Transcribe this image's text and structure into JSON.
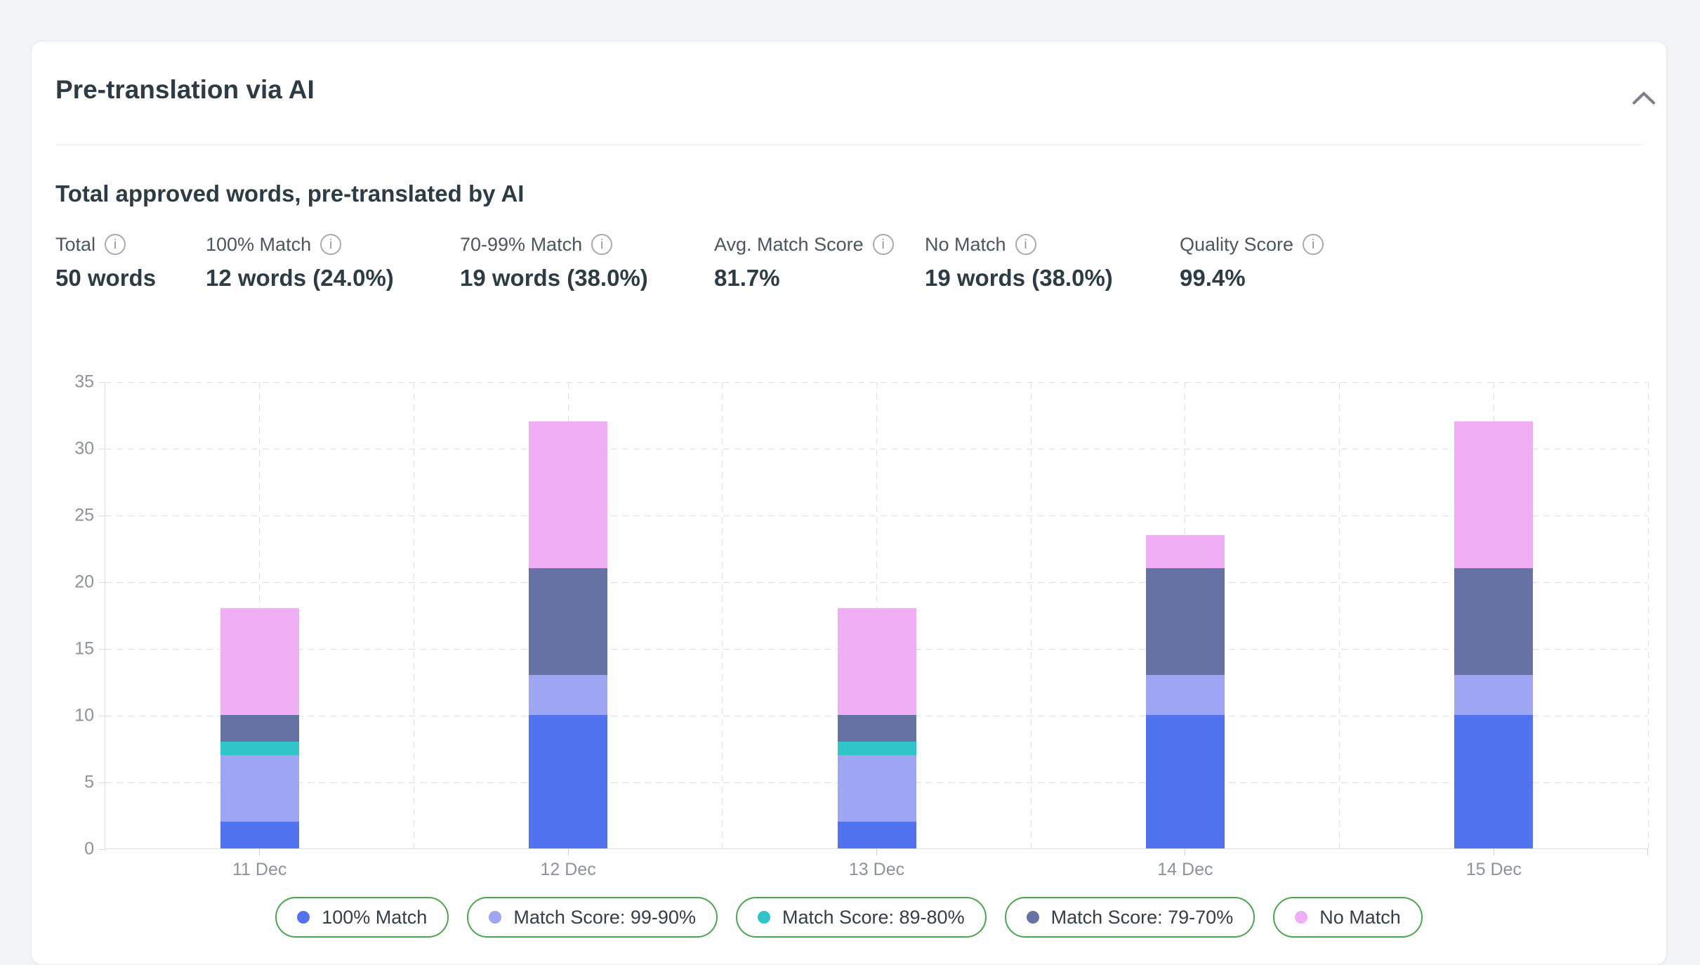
{
  "page": {
    "background": "#F1F3F5"
  },
  "card": {
    "title": "Pre-translation via AI",
    "subtitle": "Total approved words, pre-translated by AI"
  },
  "icons": {
    "collapse": "chevron-up",
    "info": "i"
  },
  "stats": [
    {
      "label": "Total",
      "value": "50 words"
    },
    {
      "label": "100% Match",
      "value": "12 words (24.0%)"
    },
    {
      "label": "70-99% Match",
      "value": "19 words (38.0%)"
    },
    {
      "label": "Avg. Match Score",
      "value": "81.7%"
    },
    {
      "label": "No Match",
      "value": "19 words (38.0%)"
    },
    {
      "label": "Quality Score",
      "value": "99.4%"
    }
  ],
  "chart_data": {
    "type": "bar",
    "stacked": true,
    "title": "Total approved words, pre-translated by AI",
    "categories": [
      "11 Dec",
      "12 Dec",
      "13 Dec",
      "14 Dec",
      "15 Dec"
    ],
    "series": [
      {
        "name": "100% Match",
        "color": "#5173F0",
        "values": [
          2,
          10,
          2,
          10,
          10
        ]
      },
      {
        "name": "Match Score: 99-90%",
        "color": "#9EA5F3",
        "values": [
          5,
          3,
          5,
          3,
          3
        ]
      },
      {
        "name": "Match Score: 89-80%",
        "color": "#30C5C8",
        "values": [
          1,
          0,
          1,
          0,
          0
        ]
      },
      {
        "name": "Match Score: 79-70%",
        "color": "#6772A4",
        "values": [
          2,
          8,
          2,
          8,
          8
        ]
      },
      {
        "name": "No Match",
        "color": "#F0AFF4",
        "values": [
          8,
          11,
          8,
          2.5,
          11
        ]
      }
    ],
    "bar_totals": [
      18,
      32,
      18,
      23.5,
      32
    ],
    "y_ticks": [
      0,
      5,
      10,
      15,
      20,
      25,
      30,
      35
    ],
    "ylim": [
      0,
      35
    ],
    "xlabel": "",
    "ylabel": "",
    "grid": "dashed",
    "legend_position": "bottom",
    "legend_border_color": "#4CA64F"
  }
}
